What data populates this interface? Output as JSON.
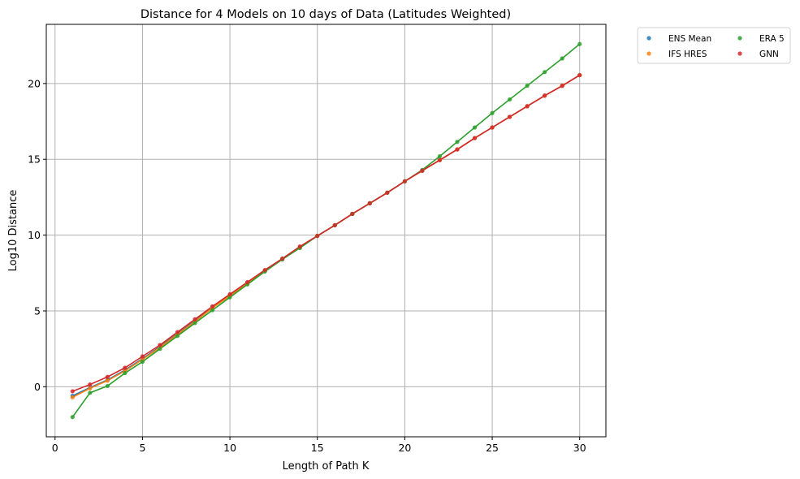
{
  "chart_data": {
    "type": "line",
    "title": "Distance for 4 Models on 10 days of Data (Latitudes Weighted)",
    "xlabel": "Length of Path K",
    "ylabel": "Log10 Distance",
    "xlim": [
      -0.5,
      31.5
    ],
    "ylim": [
      -3.3,
      23.9
    ],
    "xticks": [
      0,
      5,
      10,
      15,
      20,
      25,
      30
    ],
    "yticks": [
      0,
      5,
      10,
      15,
      20
    ],
    "grid": true,
    "legend_position": "outside-top-right",
    "x": [
      1,
      2,
      3,
      4,
      5,
      6,
      7,
      8,
      9,
      10,
      11,
      12,
      13,
      14,
      15,
      16,
      17,
      18,
      19,
      20,
      21,
      22,
      23,
      24,
      25,
      26,
      27,
      28,
      29,
      30
    ],
    "series": [
      {
        "name": "ENS Mean",
        "color": "#1f77b4",
        "values": [
          -0.6,
          -0.05,
          0.45,
          1.1,
          1.85,
          2.65,
          3.5,
          4.35,
          5.25,
          6.05,
          6.85,
          7.65,
          8.45,
          9.2,
          9.95,
          10.65,
          11.4,
          12.1,
          12.8,
          13.55,
          14.25,
          14.95,
          15.65,
          16.4,
          17.1,
          17.8,
          18.5,
          19.2,
          19.85,
          20.55
        ]
      },
      {
        "name": "IFS HRES",
        "color": "#ff7f0e",
        "values": [
          -0.7,
          -0.1,
          0.4,
          1.05,
          1.8,
          2.6,
          3.45,
          4.3,
          5.2,
          6.0,
          6.8,
          7.65,
          8.45,
          9.2,
          9.95,
          10.65,
          11.4,
          12.1,
          12.8,
          13.55,
          14.25,
          14.95,
          15.65,
          16.4,
          17.1,
          17.8,
          18.5,
          19.2,
          19.85,
          20.55
        ]
      },
      {
        "name": "ERA 5",
        "color": "#2ca02c",
        "values": [
          -2.0,
          -0.4,
          0.05,
          0.9,
          1.65,
          2.5,
          3.35,
          4.2,
          5.05,
          5.9,
          6.75,
          7.6,
          8.4,
          9.15,
          9.95,
          10.65,
          11.4,
          12.1,
          12.8,
          13.55,
          14.3,
          15.2,
          16.15,
          17.1,
          18.05,
          18.95,
          19.85,
          20.75,
          21.65,
          22.6
        ]
      },
      {
        "name": "GNN",
        "color": "#d62728",
        "values": [
          -0.3,
          0.15,
          0.65,
          1.25,
          2.0,
          2.75,
          3.6,
          4.45,
          5.3,
          6.1,
          6.9,
          7.7,
          8.45,
          9.25,
          9.95,
          10.65,
          11.4,
          12.1,
          12.8,
          13.55,
          14.25,
          14.95,
          15.65,
          16.4,
          17.1,
          17.8,
          18.5,
          19.2,
          19.85,
          20.55
        ]
      }
    ]
  }
}
